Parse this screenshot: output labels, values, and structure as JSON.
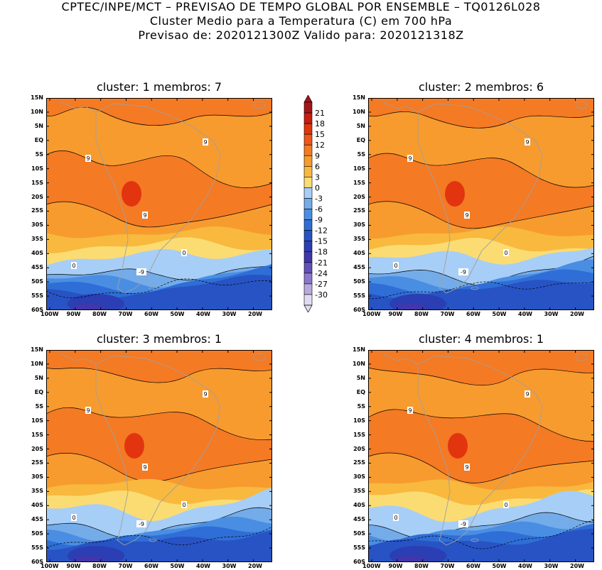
{
  "header": {
    "line1": "CPTEC/INPE/MCT – PREVISAO DE TEMPO GLOBAL POR ENSEMBLE – TQ0126L028",
    "line2": "Cluster Medio para a Temperatura (C) em 700 hPa",
    "line3": "Previsao de: 2020121300Z    Valido para: 2020121318Z"
  },
  "panels": [
    {
      "title": "cluster: 1   membros: 7"
    },
    {
      "title": "cluster: 2   membros: 6"
    },
    {
      "title": "cluster: 3   membros: 1"
    },
    {
      "title": "cluster: 4   membros: 1"
    }
  ],
  "lat_labels": [
    "15N",
    "10N",
    "5N",
    "EQ",
    "5S",
    "10S",
    "15S",
    "20S",
    "25S",
    "30S",
    "35S",
    "40S",
    "45S",
    "50S",
    "55S",
    "60S"
  ],
  "lon_labels": [
    "100W",
    "90W",
    "80W",
    "70W",
    "60W",
    "50W",
    "40W",
    "30W",
    "20W"
  ],
  "colorbar": {
    "values": [
      "21",
      "18",
      "15",
      "12",
      "9",
      "6",
      "3",
      "0",
      "-3",
      "-6",
      "-9",
      "-12",
      "-15",
      "-18",
      "-21",
      "-24",
      "-27",
      "-30"
    ],
    "colors": [
      "#a51518",
      "#c81d12",
      "#e2350f",
      "#f0561a",
      "#f47a24",
      "#f79b2f",
      "#f8b93e",
      "#fbdc73",
      "#a7cef6",
      "#74ace9",
      "#4a8ee3",
      "#2f6ed6",
      "#2753c4",
      "#2b3eb3",
      "#4236ac",
      "#6350b8",
      "#8c78cb",
      "#b9aadd",
      "#e2dcf2"
    ]
  },
  "contour_labels": {
    "warm": "9",
    "zero": "0",
    "cold": "-9"
  },
  "colors": {
    "land_outline": "#a0a0a0",
    "contour": "#000000"
  }
}
